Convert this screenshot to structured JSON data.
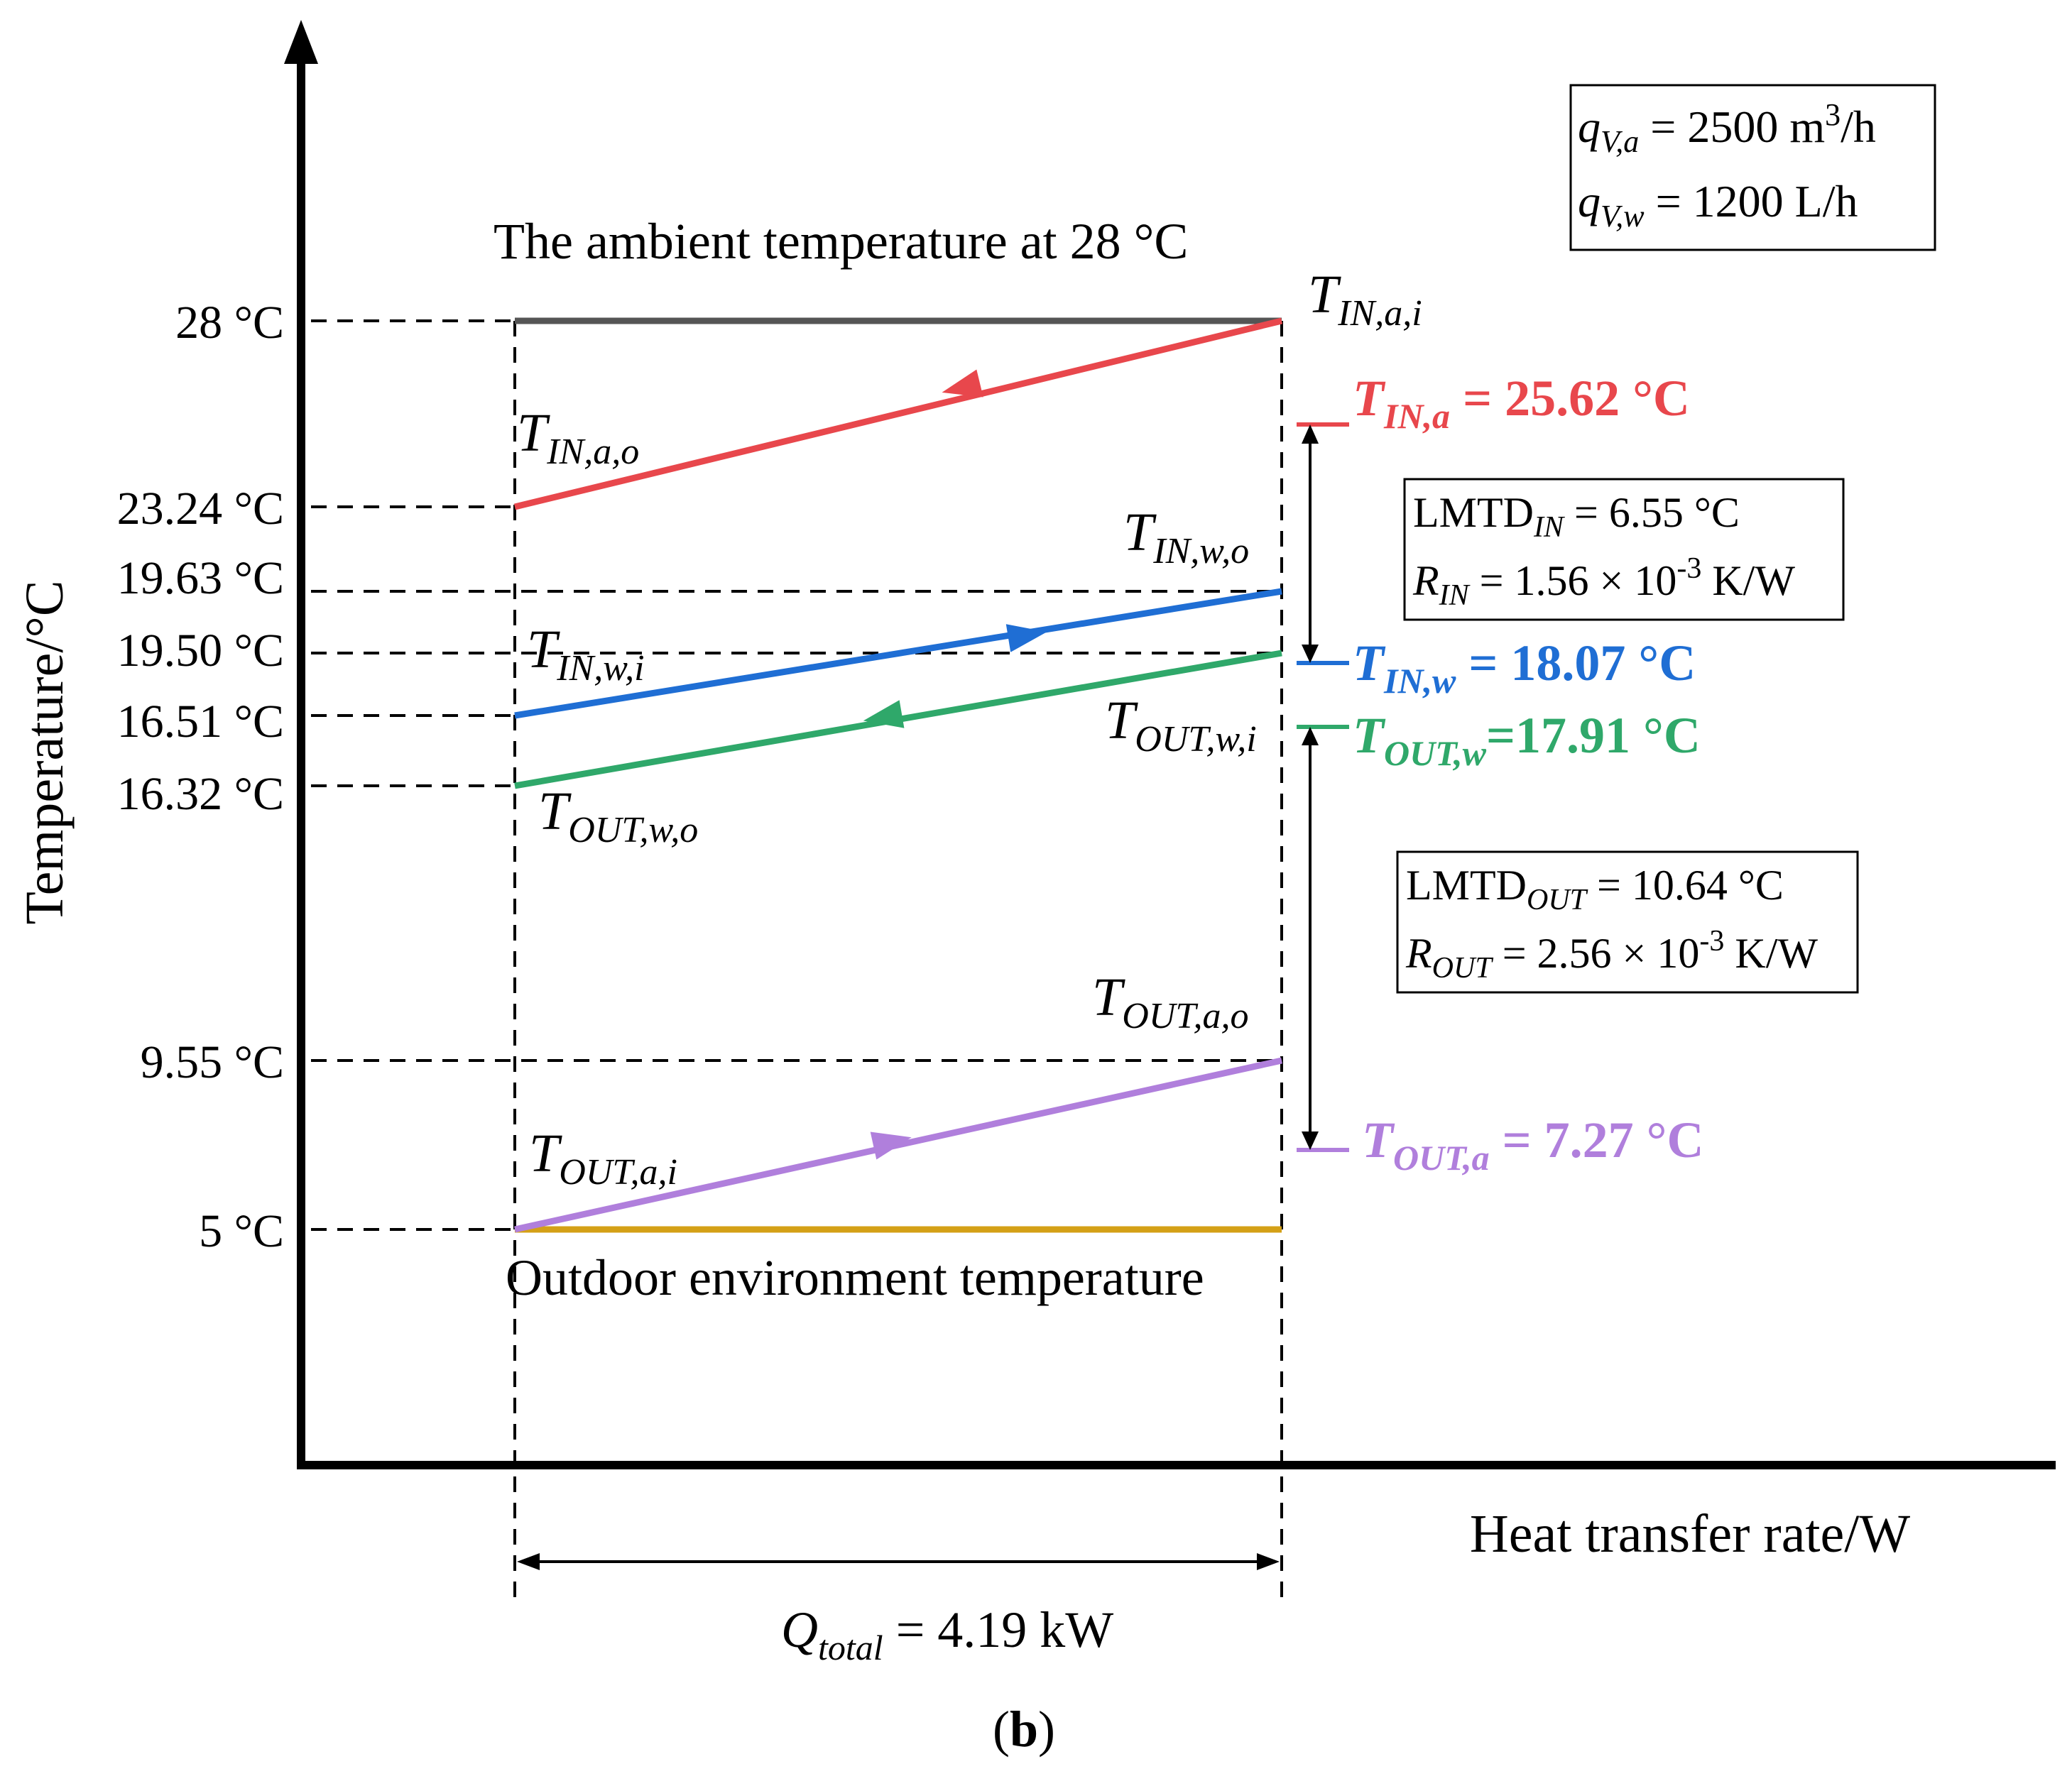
{
  "axes": {
    "y_title": "Temperature/°C",
    "x_title": "Heat transfer rate/W"
  },
  "temps": {
    "t28": "28 °C",
    "t2324": "23.24 °C",
    "t1963": "19.63 °C",
    "t1950": "19.50 °C",
    "t1651": "16.51 °C",
    "t1632": "16.32 °C",
    "t955": "9.55 °C",
    "t5": "5 °C"
  },
  "captions": {
    "ambient": "The ambient temperature at 28 °C",
    "outdoor": "Outdoor environment temperature",
    "panel": "b",
    "panel_open": "(",
    "panel_close": ")"
  },
  "flow_box": {
    "q_air": {
      "sym": "q",
      "sub": "V,a",
      "eq": " = 2500 m",
      "sup": "3",
      "unit": "/h"
    },
    "q_water": {
      "sym": "q",
      "sub": "V,w",
      "eq": " = 1200 L/h"
    }
  },
  "lmtd_in": {
    "name": "LMTD",
    "sub": "IN",
    "eq": " = 6.55 °C",
    "r_sym": "R",
    "r_sub": "IN",
    "r_eq": " = 1.56 × 10",
    "r_sup": "-3",
    "r_unit": "  K/W"
  },
  "lmtd_out": {
    "name": "LMTD",
    "sub": "OUT",
    "eq": " = 10.64 °C",
    "r_sym": "R",
    "r_sub": "OUT",
    "r_eq": " = 2.56 × 10",
    "r_sup": "-3",
    "r_unit": " K/W"
  },
  "line_labels": {
    "in_a_i": {
      "sym": "T",
      "sub": "IN,a,i"
    },
    "in_a_o": {
      "sym": "T",
      "sub": "IN,a,o"
    },
    "in_w_o": {
      "sym": "T",
      "sub": "IN,w,o"
    },
    "in_w_i": {
      "sym": "T",
      "sub": "IN,w,i"
    },
    "out_w_i": {
      "sym": "T",
      "sub": "OUT,w,i"
    },
    "out_w_o": {
      "sym": "T",
      "sub": "OUT,w,o"
    },
    "out_a_o": {
      "sym": "T",
      "sub": "OUT,a,o"
    },
    "out_a_i": {
      "sym": "T",
      "sub": "OUT,a,i"
    }
  },
  "means": {
    "in_a": {
      "sym": "T",
      "sub": "IN,a",
      "value": " = 25.62 °C"
    },
    "in_w": {
      "sym": "T",
      "sub": "IN,w",
      "value": " = 18.07 °C"
    },
    "out_w": {
      "sym": "T",
      "sub": "OUT,w",
      "value": "=17.91 °C"
    },
    "out_a": {
      "sym": "T",
      "sub": "OUT,a",
      "value": " = 7.27 °C"
    }
  },
  "q_total": {
    "sym": "Q",
    "sub": "total",
    "value": " = 4.19 kW"
  },
  "colors": {
    "red": "#e8474c",
    "blue": "#1f6ed4",
    "green": "#2fa86a",
    "purple": "#b07fdc",
    "gray": "#555555",
    "gold": "#d4a017",
    "black": "#000000"
  }
}
